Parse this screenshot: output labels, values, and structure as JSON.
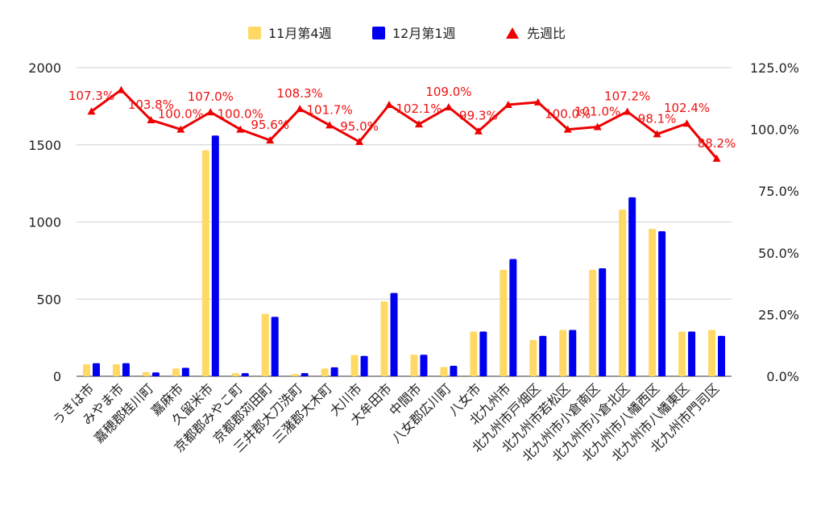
{
  "chart_data": {
    "type": "bar",
    "categories": [
      "うきは市",
      "みやま市",
      "嘉穂郡桂川町",
      "嘉麻市",
      "久留米市",
      "京都郡みやこ町",
      "京都郡苅田町",
      "三井郡大刀洗町",
      "三潴郡大木町",
      "大川市",
      "大牟田市",
      "中間市",
      "八女郡広川町",
      "八女市",
      "北九州市",
      "北九州市戸畑区",
      "北九州市若松区",
      "北九州市小倉南区",
      "北九州市小倉北区",
      "北九州市八幡西区",
      "北九州市八幡東区",
      "北九州市門司区"
    ],
    "series": [
      {
        "name": "11月第4週",
        "color": "#FFD966",
        "values": [
          78,
          78,
          27,
          50,
          1465,
          20,
          405,
          15,
          50,
          138,
          485,
          140,
          60,
          290,
          690,
          235,
          300,
          690,
          1080,
          955,
          290,
          300
        ]
      },
      {
        "name": "12月第1週",
        "color": "#0000EE",
        "values": [
          85,
          85,
          25,
          55,
          1560,
          20,
          385,
          20,
          58,
          132,
          540,
          140,
          68,
          290,
          760,
          262,
          300,
          700,
          1160,
          940,
          290,
          262
        ]
      }
    ],
    "line_series": {
      "name": "先週比",
      "color": "#EE0000",
      "values": [
        107.3,
        116.0,
        103.8,
        100.0,
        107.0,
        100.0,
        95.6,
        108.3,
        101.7,
        95.0,
        110.0,
        102.1,
        109.0,
        99.3,
        110.0,
        111.0,
        100.0,
        101.0,
        107.2,
        98.1,
        102.4,
        88.2
      ]
    },
    "line_labels": [
      "107.3%",
      "",
      "103.8%",
      "100.0%",
      "107.0%",
      "100.0%",
      "95.6%",
      "108.3%",
      "101.7%",
      "95.0%",
      "",
      "102.1%",
      "109.0%",
      "99.3%",
      "",
      "",
      "100.0%",
      "101.0%",
      "107.2%",
      "98.1%",
      "102.4%",
      "88.2%"
    ],
    "y_left": {
      "ylim": [
        0,
        2000
      ],
      "ticks": [
        "0",
        "500",
        "1000",
        "1500",
        "2000"
      ],
      "tick_values": [
        0,
        500,
        1000,
        1500,
        2000
      ]
    },
    "y_right": {
      "ylim": [
        0,
        125
      ],
      "ticks": [
        "0.0%",
        "25.0%",
        "50.0%",
        "75.0%",
        "100.0%",
        "125.0%"
      ],
      "tick_values": [
        0,
        25,
        50,
        75,
        100,
        125
      ]
    },
    "legend": {
      "position": "top"
    },
    "grid": true
  }
}
